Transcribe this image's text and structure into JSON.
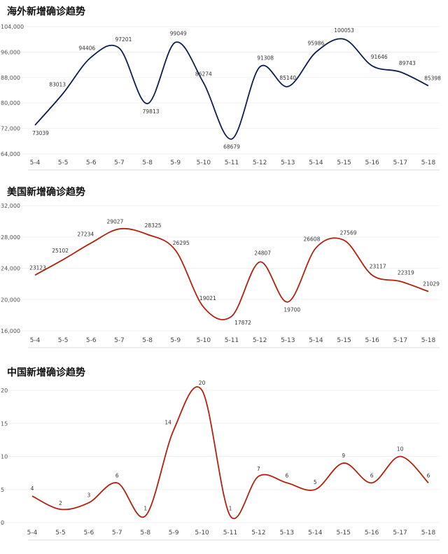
{
  "chart_data": [
    {
      "type": "line",
      "title": "海外新增确诊趋势",
      "categories": [
        "5-4",
        "5-5",
        "5-6",
        "5-7",
        "5-8",
        "5-9",
        "5-10",
        "5-11",
        "5-12",
        "5-13",
        "5-14",
        "5-15",
        "5-16",
        "5-17",
        "5-18"
      ],
      "series": [
        {
          "name": "海外新增确诊",
          "values": [
            73039,
            83013,
            94406,
            97201,
            79813,
            99049,
            86274,
            68679,
            91308,
            85140,
            95986,
            100053,
            91646,
            89743,
            85398
          ]
        }
      ],
      "ylim": [
        64000,
        104000
      ],
      "yticks": [
        64000,
        72000,
        80000,
        88000,
        96000,
        104000
      ],
      "ytick_labels": [
        "64,000",
        "72,000",
        "80,000",
        "88,000",
        "96,000",
        "104,000"
      ],
      "color": "#0d1f4f",
      "smooth": true,
      "legend": "none",
      "grid": true
    },
    {
      "type": "line",
      "title": "美国新增确诊趋势",
      "categories": [
        "5-4",
        "5-5",
        "5-6",
        "5-7",
        "5-8",
        "5-9",
        "5-10",
        "5-11",
        "5-12",
        "5-13",
        "5-14",
        "5-15",
        "5-16",
        "5-17",
        "5-18"
      ],
      "series": [
        {
          "name": "美国新增确诊",
          "values": [
            23123,
            25102,
            27234,
            29027,
            28325,
            26295,
            19021,
            17872,
            24807,
            19700,
            26608,
            27569,
            23117,
            22319,
            21029
          ]
        }
      ],
      "ylim": [
        16000,
        32000
      ],
      "yticks": [
        16000,
        20000,
        24000,
        28000,
        32000
      ],
      "ytick_labels": [
        "16,000",
        "20,000",
        "24,000",
        "28,000",
        "32,000"
      ],
      "color": "#b3200e",
      "smooth": true,
      "legend": "none",
      "grid": true
    },
    {
      "type": "line",
      "title": "中国新增确诊趋势",
      "categories": [
        "5-4",
        "5-5",
        "5-6",
        "5-7",
        "5-8",
        "5-9",
        "5-10",
        "5-11",
        "5-12",
        "5-13",
        "5-14",
        "5-15",
        "5-16",
        "5-17",
        "5-18"
      ],
      "series": [
        {
          "name": "中国新增确诊",
          "values": [
            4,
            2,
            3,
            6,
            1,
            14,
            20,
            1,
            7,
            6,
            5,
            9,
            6,
            10,
            6
          ]
        }
      ],
      "ylim": [
        0,
        20
      ],
      "yticks": [
        0,
        5,
        10,
        15,
        20
      ],
      "ytick_labels": [
        "0",
        "5",
        "10",
        "15",
        "20"
      ],
      "color": "#b3200e",
      "smooth": true,
      "legend": "none",
      "grid": true
    }
  ]
}
